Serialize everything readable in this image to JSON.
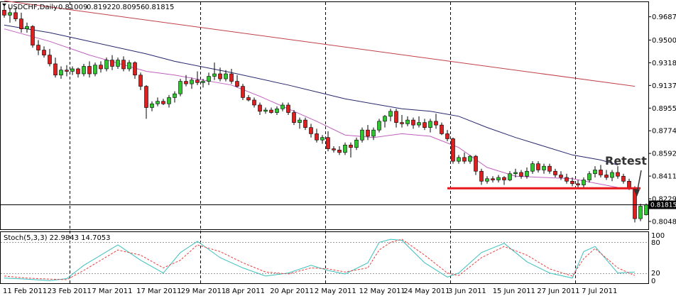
{
  "chart_data": {
    "type": "candlestick",
    "symbol": "USDCHF,Daily",
    "ohlc_readout": [
      "0.81009",
      "0.81922",
      "0.80956",
      "0.81815"
    ],
    "current_price_label": "0.81815",
    "current_price": 0.81815,
    "ylim": [
      0.7985,
      0.981
    ],
    "y_ticks": [
      "0.96870",
      "0.95005",
      "0.93185",
      "0.91370",
      "0.89555",
      "0.87740",
      "0.85925",
      "0.84110",
      "0.82295",
      "0.80480"
    ],
    "x_tick_labels": [
      "11 Feb 2011",
      "23 Feb 2011",
      "7 Mar 2011",
      "17 Mar 2011",
      "29 Mar 2011",
      "8 Apr 2011",
      "20 Apr 2011",
      "2 May 2011",
      "12 May 2011",
      "24 May 2011",
      "3 Jun 2011",
      "15 Jun 2011",
      "27 Jun 2011",
      "7 Jul 2011"
    ],
    "candles": [
      {
        "o": 0.974,
        "h": 0.978,
        "l": 0.968,
        "c": 0.97
      },
      {
        "o": 0.97,
        "h": 0.976,
        "l": 0.964,
        "c": 0.972
      },
      {
        "o": 0.972,
        "h": 0.976,
        "l": 0.965,
        "c": 0.967
      },
      {
        "o": 0.967,
        "h": 0.972,
        "l": 0.956,
        "c": 0.959
      },
      {
        "o": 0.959,
        "h": 0.964,
        "l": 0.956,
        "c": 0.961
      },
      {
        "o": 0.961,
        "h": 0.962,
        "l": 0.944,
        "c": 0.946
      },
      {
        "o": 0.946,
        "h": 0.95,
        "l": 0.938,
        "c": 0.942
      },
      {
        "o": 0.942,
        "h": 0.945,
        "l": 0.936,
        "c": 0.938
      },
      {
        "o": 0.938,
        "h": 0.943,
        "l": 0.929,
        "c": 0.931
      },
      {
        "o": 0.931,
        "h": 0.936,
        "l": 0.92,
        "c": 0.922
      },
      {
        "o": 0.922,
        "h": 0.929,
        "l": 0.919,
        "c": 0.926
      },
      {
        "o": 0.926,
        "h": 0.93,
        "l": 0.921,
        "c": 0.925
      },
      {
        "o": 0.925,
        "h": 0.929,
        "l": 0.922,
        "c": 0.927
      },
      {
        "o": 0.927,
        "h": 0.928,
        "l": 0.92,
        "c": 0.923
      },
      {
        "o": 0.923,
        "h": 0.931,
        "l": 0.921,
        "c": 0.929
      },
      {
        "o": 0.929,
        "h": 0.933,
        "l": 0.92,
        "c": 0.923
      },
      {
        "o": 0.923,
        "h": 0.932,
        "l": 0.921,
        "c": 0.93
      },
      {
        "o": 0.93,
        "h": 0.933,
        "l": 0.924,
        "c": 0.927
      },
      {
        "o": 0.927,
        "h": 0.936,
        "l": 0.925,
        "c": 0.934
      },
      {
        "o": 0.934,
        "h": 0.938,
        "l": 0.926,
        "c": 0.929
      },
      {
        "o": 0.929,
        "h": 0.936,
        "l": 0.927,
        "c": 0.934
      },
      {
        "o": 0.934,
        "h": 0.937,
        "l": 0.925,
        "c": 0.927
      },
      {
        "o": 0.927,
        "h": 0.934,
        "l": 0.925,
        "c": 0.932
      },
      {
        "o": 0.932,
        "h": 0.933,
        "l": 0.919,
        "c": 0.922
      },
      {
        "o": 0.922,
        "h": 0.924,
        "l": 0.91,
        "c": 0.913
      },
      {
        "o": 0.913,
        "h": 0.914,
        "l": 0.887,
        "c": 0.896
      },
      {
        "o": 0.896,
        "h": 0.901,
        "l": 0.893,
        "c": 0.899
      },
      {
        "o": 0.899,
        "h": 0.904,
        "l": 0.897,
        "c": 0.901
      },
      {
        "o": 0.901,
        "h": 0.903,
        "l": 0.898,
        "c": 0.899
      },
      {
        "o": 0.899,
        "h": 0.906,
        "l": 0.896,
        "c": 0.904
      },
      {
        "o": 0.904,
        "h": 0.909,
        "l": 0.9,
        "c": 0.907
      },
      {
        "o": 0.907,
        "h": 0.919,
        "l": 0.905,
        "c": 0.917
      },
      {
        "o": 0.917,
        "h": 0.922,
        "l": 0.913,
        "c": 0.915
      },
      {
        "o": 0.915,
        "h": 0.92,
        "l": 0.911,
        "c": 0.918
      },
      {
        "o": 0.918,
        "h": 0.925,
        "l": 0.914,
        "c": 0.916
      },
      {
        "o": 0.916,
        "h": 0.919,
        "l": 0.912,
        "c": 0.917
      },
      {
        "o": 0.917,
        "h": 0.924,
        "l": 0.914,
        "c": 0.921
      },
      {
        "o": 0.921,
        "h": 0.932,
        "l": 0.918,
        "c": 0.923
      },
      {
        "o": 0.923,
        "h": 0.928,
        "l": 0.917,
        "c": 0.919
      },
      {
        "o": 0.919,
        "h": 0.926,
        "l": 0.917,
        "c": 0.923
      },
      {
        "o": 0.923,
        "h": 0.927,
        "l": 0.915,
        "c": 0.917
      },
      {
        "o": 0.917,
        "h": 0.922,
        "l": 0.912,
        "c": 0.913
      },
      {
        "o": 0.913,
        "h": 0.915,
        "l": 0.902,
        "c": 0.904
      },
      {
        "o": 0.904,
        "h": 0.906,
        "l": 0.901,
        "c": 0.902
      },
      {
        "o": 0.902,
        "h": 0.904,
        "l": 0.896,
        "c": 0.898
      },
      {
        "o": 0.898,
        "h": 0.9,
        "l": 0.89,
        "c": 0.893
      },
      {
        "o": 0.893,
        "h": 0.896,
        "l": 0.891,
        "c": 0.894
      },
      {
        "o": 0.894,
        "h": 0.896,
        "l": 0.891,
        "c": 0.892
      },
      {
        "o": 0.892,
        "h": 0.897,
        "l": 0.89,
        "c": 0.895
      },
      {
        "o": 0.895,
        "h": 0.9,
        "l": 0.893,
        "c": 0.898
      },
      {
        "o": 0.898,
        "h": 0.9,
        "l": 0.89,
        "c": 0.892
      },
      {
        "o": 0.892,
        "h": 0.894,
        "l": 0.882,
        "c": 0.884
      },
      {
        "o": 0.884,
        "h": 0.888,
        "l": 0.879,
        "c": 0.886
      },
      {
        "o": 0.886,
        "h": 0.888,
        "l": 0.878,
        "c": 0.88
      },
      {
        "o": 0.88,
        "h": 0.883,
        "l": 0.872,
        "c": 0.875
      },
      {
        "o": 0.875,
        "h": 0.879,
        "l": 0.868,
        "c": 0.87
      },
      {
        "o": 0.87,
        "h": 0.874,
        "l": 0.867,
        "c": 0.872
      },
      {
        "o": 0.872,
        "h": 0.877,
        "l": 0.861,
        "c": 0.863
      },
      {
        "o": 0.863,
        "h": 0.865,
        "l": 0.86,
        "c": 0.862
      },
      {
        "o": 0.862,
        "h": 0.865,
        "l": 0.858,
        "c": 0.86
      },
      {
        "o": 0.86,
        "h": 0.868,
        "l": 0.858,
        "c": 0.866
      },
      {
        "o": 0.866,
        "h": 0.868,
        "l": 0.856,
        "c": 0.864
      },
      {
        "o": 0.864,
        "h": 0.872,
        "l": 0.862,
        "c": 0.87
      },
      {
        "o": 0.87,
        "h": 0.88,
        "l": 0.868,
        "c": 0.878
      },
      {
        "o": 0.878,
        "h": 0.882,
        "l": 0.87,
        "c": 0.873
      },
      {
        "o": 0.873,
        "h": 0.88,
        "l": 0.87,
        "c": 0.878
      },
      {
        "o": 0.878,
        "h": 0.887,
        "l": 0.876,
        "c": 0.885
      },
      {
        "o": 0.885,
        "h": 0.89,
        "l": 0.88,
        "c": 0.889
      },
      {
        "o": 0.889,
        "h": 0.895,
        "l": 0.885,
        "c": 0.893
      },
      {
        "o": 0.893,
        "h": 0.895,
        "l": 0.88,
        "c": 0.884
      },
      {
        "o": 0.884,
        "h": 0.89,
        "l": 0.88,
        "c": 0.883
      },
      {
        "o": 0.883,
        "h": 0.889,
        "l": 0.881,
        "c": 0.886
      },
      {
        "o": 0.886,
        "h": 0.888,
        "l": 0.879,
        "c": 0.882
      },
      {
        "o": 0.882,
        "h": 0.889,
        "l": 0.88,
        "c": 0.884
      },
      {
        "o": 0.884,
        "h": 0.887,
        "l": 0.878,
        "c": 0.88
      },
      {
        "o": 0.88,
        "h": 0.887,
        "l": 0.876,
        "c": 0.885
      },
      {
        "o": 0.885,
        "h": 0.891,
        "l": 0.879,
        "c": 0.882
      },
      {
        "o": 0.882,
        "h": 0.884,
        "l": 0.874,
        "c": 0.875
      },
      {
        "o": 0.875,
        "h": 0.878,
        "l": 0.869,
        "c": 0.871
      },
      {
        "o": 0.871,
        "h": 0.872,
        "l": 0.851,
        "c": 0.853
      },
      {
        "o": 0.853,
        "h": 0.858,
        "l": 0.851,
        "c": 0.856
      },
      {
        "o": 0.856,
        "h": 0.86,
        "l": 0.851,
        "c": 0.853
      },
      {
        "o": 0.853,
        "h": 0.858,
        "l": 0.851,
        "c": 0.857
      },
      {
        "o": 0.857,
        "h": 0.858,
        "l": 0.842,
        "c": 0.845
      },
      {
        "o": 0.845,
        "h": 0.847,
        "l": 0.834,
        "c": 0.837
      },
      {
        "o": 0.837,
        "h": 0.841,
        "l": 0.835,
        "c": 0.839
      },
      {
        "o": 0.839,
        "h": 0.841,
        "l": 0.836,
        "c": 0.838
      },
      {
        "o": 0.838,
        "h": 0.842,
        "l": 0.836,
        "c": 0.84
      },
      {
        "o": 0.84,
        "h": 0.841,
        "l": 0.834,
        "c": 0.838
      },
      {
        "o": 0.838,
        "h": 0.845,
        "l": 0.837,
        "c": 0.843
      },
      {
        "o": 0.843,
        "h": 0.847,
        "l": 0.84,
        "c": 0.844
      },
      {
        "o": 0.844,
        "h": 0.846,
        "l": 0.839,
        "c": 0.841
      },
      {
        "o": 0.841,
        "h": 0.848,
        "l": 0.839,
        "c": 0.845
      },
      {
        "o": 0.845,
        "h": 0.853,
        "l": 0.843,
        "c": 0.851
      },
      {
        "o": 0.851,
        "h": 0.853,
        "l": 0.844,
        "c": 0.846
      },
      {
        "o": 0.846,
        "h": 0.851,
        "l": 0.843,
        "c": 0.849
      },
      {
        "o": 0.849,
        "h": 0.851,
        "l": 0.843,
        "c": 0.845
      },
      {
        "o": 0.845,
        "h": 0.847,
        "l": 0.84,
        "c": 0.842
      },
      {
        "o": 0.842,
        "h": 0.845,
        "l": 0.838,
        "c": 0.84
      },
      {
        "o": 0.84,
        "h": 0.843,
        "l": 0.835,
        "c": 0.837
      },
      {
        "o": 0.837,
        "h": 0.84,
        "l": 0.833,
        "c": 0.835
      },
      {
        "o": 0.835,
        "h": 0.838,
        "l": 0.832,
        "c": 0.834
      },
      {
        "o": 0.834,
        "h": 0.84,
        "l": 0.832,
        "c": 0.838
      },
      {
        "o": 0.838,
        "h": 0.845,
        "l": 0.836,
        "c": 0.843
      },
      {
        "o": 0.843,
        "h": 0.849,
        "l": 0.84,
        "c": 0.846
      },
      {
        "o": 0.846,
        "h": 0.85,
        "l": 0.84,
        "c": 0.842
      },
      {
        "o": 0.842,
        "h": 0.846,
        "l": 0.838,
        "c": 0.84
      },
      {
        "o": 0.84,
        "h": 0.846,
        "l": 0.837,
        "c": 0.844
      },
      {
        "o": 0.844,
        "h": 0.849,
        "l": 0.839,
        "c": 0.841
      },
      {
        "o": 0.841,
        "h": 0.843,
        "l": 0.835,
        "c": 0.837
      },
      {
        "o": 0.837,
        "h": 0.839,
        "l": 0.83,
        "c": 0.831
      },
      {
        "o": 0.831,
        "h": 0.833,
        "l": 0.804,
        "c": 0.807
      },
      {
        "o": 0.807,
        "h": 0.819,
        "l": 0.805,
        "c": 0.817
      },
      {
        "o": 0.8101,
        "h": 0.8192,
        "l": 0.8096,
        "c": 0.8182
      }
    ],
    "series": [
      {
        "line": "red-ma",
        "color": "#c04048",
        "x": [
          0,
          111
        ],
        "values": [
          0.9815,
          0.913
        ]
      },
      {
        "line": "navy-ma",
        "color": "#26266e",
        "x": [
          0,
          8,
          15,
          25,
          30,
          40,
          50,
          60,
          70,
          75,
          80,
          85,
          90,
          95,
          100,
          105,
          108
        ],
        "values": [
          0.962,
          0.956,
          0.949,
          0.939,
          0.933,
          0.924,
          0.914,
          0.903,
          0.895,
          0.893,
          0.889,
          0.88,
          0.872,
          0.865,
          0.858,
          0.854,
          0.85
        ]
      },
      {
        "line": "violet-ma",
        "color": "#c060c0",
        "x": [
          0,
          8,
          15,
          25,
          30,
          40,
          45,
          55,
          60,
          65,
          70,
          75,
          80,
          85,
          90,
          95,
          100,
          108
        ],
        "values": [
          0.959,
          0.949,
          0.938,
          0.925,
          0.922,
          0.914,
          0.905,
          0.885,
          0.874,
          0.872,
          0.875,
          0.873,
          0.864,
          0.848,
          0.841,
          0.84,
          0.839,
          0.832
        ]
      }
    ],
    "support_line": {
      "value": 0.8313,
      "x_from": 78,
      "x_to": 112,
      "color": "#e8151b"
    },
    "annotation": {
      "text": "Retest"
    },
    "vertical_markers": [
      11,
      34,
      56,
      78,
      100
    ],
    "stochastic": {
      "label": "Stoch(5,3,3) 22.9843 14.7053",
      "ylim": [
        0,
        100
      ],
      "levels": [
        20,
        80
      ],
      "y_tick_labels": [
        "100",
        "80",
        "20",
        "0"
      ],
      "main": {
        "color": "#3cc0c0",
        "x": [
          0,
          4,
          8,
          11,
          14,
          17,
          20,
          24,
          28,
          31,
          34,
          38,
          42,
          46,
          50,
          54,
          57,
          60,
          64,
          66,
          68,
          70,
          74,
          78,
          80,
          84,
          88,
          92,
          96,
          100,
          102,
          104,
          108,
          111
        ],
        "values": [
          10,
          8,
          5,
          9,
          35,
          55,
          75,
          45,
          20,
          60,
          82,
          50,
          30,
          14,
          20,
          35,
          25,
          18,
          40,
          80,
          86,
          84,
          40,
          12,
          20,
          60,
          78,
          42,
          20,
          10,
          62,
          72,
          20,
          22
        ]
      },
      "signal": {
        "color": "#e84040",
        "x": [
          0,
          4,
          8,
          11,
          14,
          17,
          20,
          24,
          28,
          31,
          34,
          38,
          42,
          46,
          50,
          54,
          57,
          60,
          64,
          66,
          68,
          70,
          74,
          78,
          80,
          84,
          88,
          92,
          96,
          100,
          102,
          104,
          108,
          111
        ],
        "values": [
          14,
          10,
          8,
          7,
          25,
          45,
          65,
          55,
          30,
          45,
          75,
          62,
          40,
          22,
          18,
          30,
          28,
          22,
          30,
          65,
          80,
          86,
          55,
          20,
          15,
          50,
          72,
          55,
          28,
          14,
          48,
          68,
          30,
          15
        ]
      }
    }
  }
}
